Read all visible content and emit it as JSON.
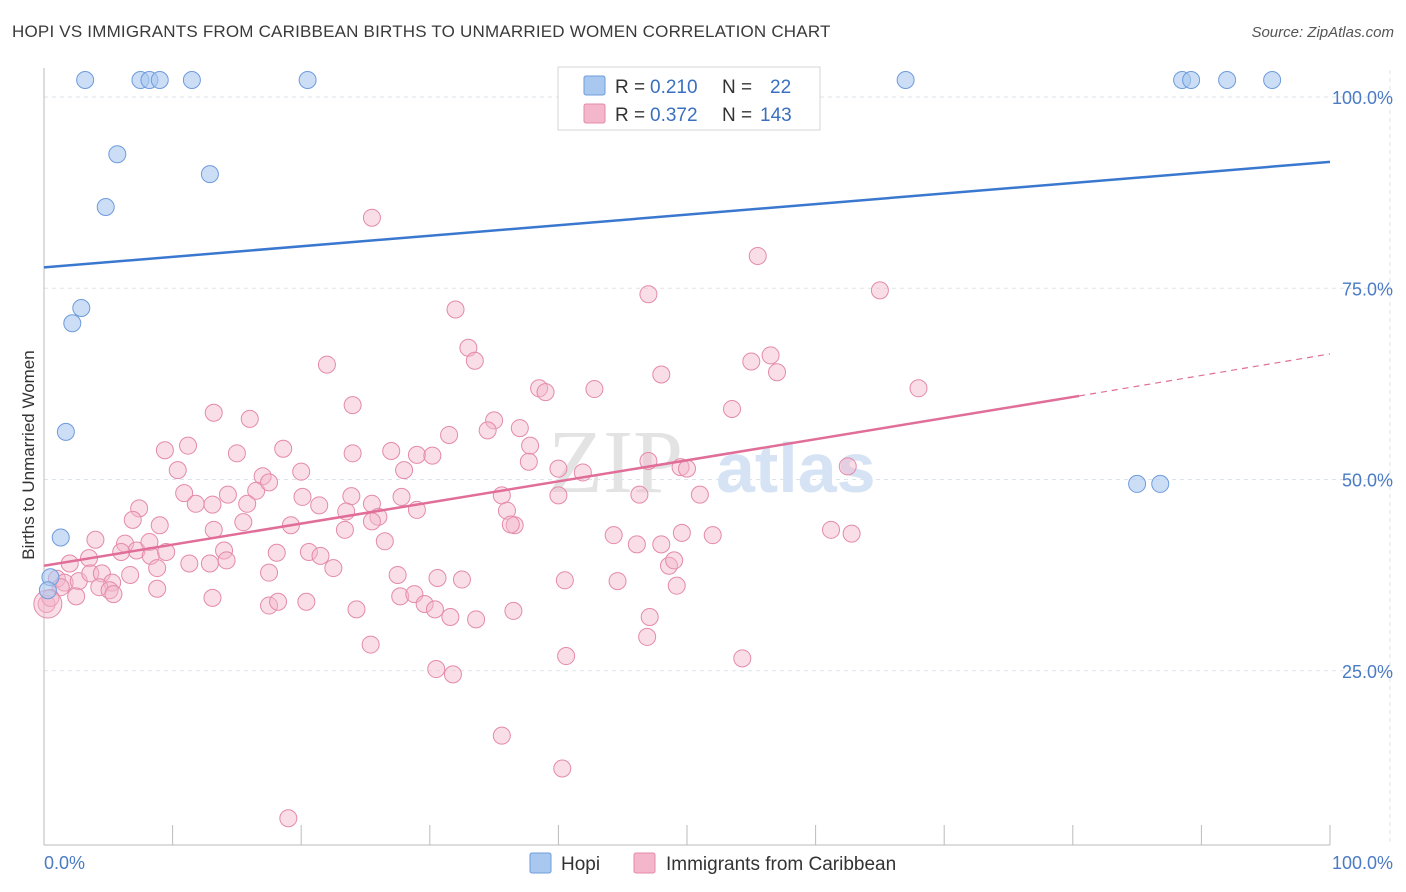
{
  "title": "HOPI VS IMMIGRANTS FROM CARIBBEAN BIRTHS TO UNMARRIED WOMEN CORRELATION CHART",
  "source": "Source: ZipAtlas.com",
  "watermark": {
    "part1": "ZIP",
    "part2": "atlas"
  },
  "colors": {
    "hopi": "#a9c8f0",
    "hopi_line": "#3a78d0",
    "carib": "#f4b6ca",
    "carib_line": "#e06e98",
    "grid": "#dde3ea",
    "tick": "#4a7bc4"
  },
  "legend": {
    "hopi": {
      "r_label": "R =",
      "r_value": "0.210",
      "n_label": "N =",
      "n_value": "22"
    },
    "carib": {
      "r_label": "R =",
      "r_value": "0.372",
      "n_label": "N =",
      "n_value": "143"
    }
  },
  "bottom_legend": {
    "hopi": "Hopi",
    "carib": "Immigrants from Caribbean"
  },
  "chart_data": {
    "type": "scatter",
    "xlabel": "",
    "ylabel": "Births to Unmarried Women",
    "xlim": [
      0,
      100
    ],
    "ylim": [
      0,
      100
    ],
    "x_tick_labels": [
      "0.0%",
      "100.0%"
    ],
    "y_tick_labels": [
      "25.0%",
      "50.0%",
      "75.0%",
      "100.0%"
    ],
    "grid": true,
    "legend_position": "top-center",
    "series": [
      {
        "name": "Hopi",
        "trend": [
          [
            0,
            75.5
          ],
          [
            100,
            89.3
          ]
        ],
        "points": [
          [
            3.2,
            100
          ],
          [
            7.5,
            100
          ],
          [
            8.2,
            100
          ],
          [
            9.0,
            100
          ],
          [
            11.5,
            100
          ],
          [
            20.5,
            100
          ],
          [
            67,
            100
          ],
          [
            88.5,
            100
          ],
          [
            89.2,
            100
          ],
          [
            92,
            100
          ],
          [
            95.5,
            100
          ],
          [
            5.7,
            90.3
          ],
          [
            12.9,
            87.7
          ],
          [
            4.8,
            83.4
          ],
          [
            2.9,
            70.2
          ],
          [
            2.2,
            68.2
          ],
          [
            1.7,
            54.0
          ],
          [
            1.3,
            40.2
          ],
          [
            0.5,
            35.0
          ],
          [
            0.3,
            33.3
          ],
          [
            85,
            47.2
          ],
          [
            86.8,
            47.2
          ]
        ]
      },
      {
        "name": "Immigrants from Caribbean",
        "trend": [
          [
            0,
            36.5
          ],
          [
            80.5,
            58.7
          ]
        ],
        "trend_dashed": [
          [
            80.5,
            58.7
          ],
          [
            100,
            64.2
          ]
        ],
        "points": [
          [
            25.5,
            82
          ],
          [
            55.5,
            77
          ],
          [
            32,
            70
          ],
          [
            47,
            72
          ],
          [
            65,
            72.5
          ],
          [
            33,
            65
          ],
          [
            22,
            62.8
          ],
          [
            33.5,
            63.3
          ],
          [
            48,
            61.5
          ],
          [
            56.5,
            64
          ],
          [
            55,
            63.2
          ],
          [
            57,
            61.8
          ],
          [
            38.5,
            59.7
          ],
          [
            39,
            59.2
          ],
          [
            42.8,
            59.6
          ],
          [
            68,
            59.7
          ],
          [
            53.5,
            57
          ],
          [
            24,
            57.5
          ],
          [
            13.2,
            56.5
          ],
          [
            16,
            55.7
          ],
          [
            35,
            55.5
          ],
          [
            37,
            54.5
          ],
          [
            34.5,
            54.2
          ],
          [
            31.5,
            53.6
          ],
          [
            37.8,
            52.2
          ],
          [
            11.2,
            52.2
          ],
          [
            9.4,
            51.6
          ],
          [
            15,
            51.2
          ],
          [
            24,
            51.2
          ],
          [
            27,
            51.5
          ],
          [
            29,
            51
          ],
          [
            30.2,
            50.9
          ],
          [
            18.6,
            51.8
          ],
          [
            47,
            50.2
          ],
          [
            37.7,
            50.1
          ],
          [
            40,
            49.2
          ],
          [
            41.9,
            48.7
          ],
          [
            49.5,
            49.4
          ],
          [
            50,
            49.2
          ],
          [
            62.5,
            49.5
          ],
          [
            10.4,
            49
          ],
          [
            28,
            49
          ],
          [
            17,
            48.2
          ],
          [
            20,
            48.8
          ],
          [
            16.5,
            46.3
          ],
          [
            17.5,
            47.4
          ],
          [
            10.9,
            46
          ],
          [
            14.3,
            45.8
          ],
          [
            35.6,
            45.7
          ],
          [
            40,
            45.7
          ],
          [
            46.3,
            45.8
          ],
          [
            51,
            45.8
          ],
          [
            20.1,
            45.5
          ],
          [
            27.8,
            45.5
          ],
          [
            23.9,
            45.6
          ],
          [
            25.5,
            44.6
          ],
          [
            11.8,
            44.6
          ],
          [
            13.1,
            44.5
          ],
          [
            15.8,
            44.6
          ],
          [
            21.4,
            44.4
          ],
          [
            23.5,
            43.6
          ],
          [
            29,
            43.8
          ],
          [
            26,
            42.9
          ],
          [
            36,
            43.7
          ],
          [
            7.4,
            44
          ],
          [
            6.9,
            42.5
          ],
          [
            9,
            41.8
          ],
          [
            13.2,
            41.2
          ],
          [
            15.5,
            42.2
          ],
          [
            19.2,
            41.8
          ],
          [
            23.4,
            41.2
          ],
          [
            25.5,
            42.3
          ],
          [
            36.6,
            41.8
          ],
          [
            44.3,
            40.5
          ],
          [
            49.6,
            40.8
          ],
          [
            52,
            40.5
          ],
          [
            62.8,
            40.7
          ],
          [
            46.1,
            39.3
          ],
          [
            48,
            39.3
          ],
          [
            4,
            39.9
          ],
          [
            6.3,
            39.4
          ],
          [
            7.2,
            38.5
          ],
          [
            8.2,
            39.6
          ],
          [
            18.1,
            38.2
          ],
          [
            26.5,
            39.7
          ],
          [
            36.3,
            41.9
          ],
          [
            61.2,
            41.2
          ],
          [
            48.6,
            36.5
          ],
          [
            6,
            38.3
          ],
          [
            3.5,
            37.5
          ],
          [
            2,
            36.8
          ],
          [
            8.3,
            37.8
          ],
          [
            9.5,
            38.3
          ],
          [
            11.3,
            36.8
          ],
          [
            12.9,
            36.8
          ],
          [
            14,
            38.5
          ],
          [
            14.2,
            37.2
          ],
          [
            20.6,
            38.3
          ],
          [
            21.5,
            37.8
          ],
          [
            49,
            37.2
          ],
          [
            1,
            34.8
          ],
          [
            1.6,
            34.3
          ],
          [
            2.7,
            34.5
          ],
          [
            3.6,
            35.5
          ],
          [
            4.5,
            35.5
          ],
          [
            5.3,
            34.3
          ],
          [
            6.7,
            35.3
          ],
          [
            8.8,
            36.2
          ],
          [
            17.5,
            35.6
          ],
          [
            22.5,
            36.2
          ],
          [
            27.5,
            35.3
          ],
          [
            30.6,
            34.9
          ],
          [
            32.5,
            34.7
          ],
          [
            40.5,
            34.6
          ],
          [
            44.6,
            34.5
          ],
          [
            1.3,
            33.7
          ],
          [
            2.5,
            32.5
          ],
          [
            4.3,
            33.7
          ],
          [
            5.1,
            33.3
          ],
          [
            5.4,
            32.8
          ],
          [
            8.8,
            33.5
          ],
          [
            13.1,
            32.3
          ],
          [
            17.5,
            31.3
          ],
          [
            18.2,
            31.8
          ],
          [
            20.4,
            31.8
          ],
          [
            24.3,
            30.8
          ],
          [
            27.7,
            32.5
          ],
          [
            28.8,
            32.8
          ],
          [
            29.6,
            31.5
          ],
          [
            30.4,
            30.8
          ],
          [
            31.6,
            29.8
          ],
          [
            33.6,
            29.5
          ],
          [
            36.5,
            30.6
          ],
          [
            47.1,
            29.8
          ],
          [
            49.2,
            33.9
          ],
          [
            46.9,
            27.2
          ],
          [
            25.4,
            26.2
          ],
          [
            30.5,
            23
          ],
          [
            40.6,
            24.7
          ],
          [
            54.3,
            24.4
          ],
          [
            31.8,
            22.3
          ],
          [
            35.6,
            14.3
          ],
          [
            40.3,
            10
          ],
          [
            19,
            3.5
          ],
          [
            0.2,
            31.5
          ],
          [
            0.5,
            32.3
          ]
        ]
      }
    ]
  }
}
